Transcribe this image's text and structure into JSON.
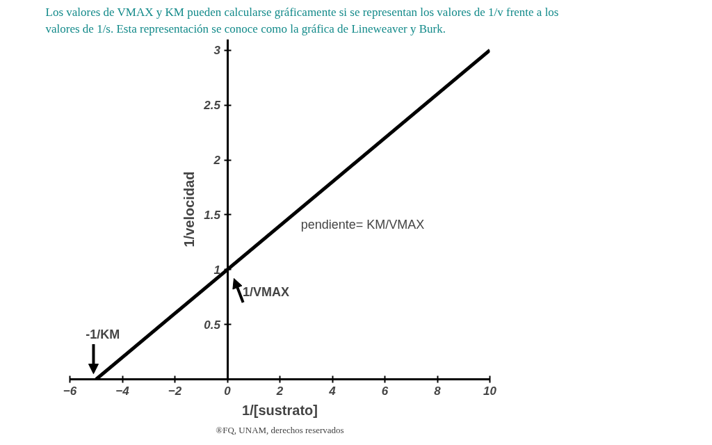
{
  "chart_data": {
    "type": "line",
    "title": "Los valores de VMAX y KM pueden calcularse gráficamente si se representan los valores de 1/v frente a los valores de 1/s. Esta representación se conoce como la gráfica de Lineweaver y Burk.",
    "xlabel": "1/[sustrato]",
    "ylabel": "1/velocidad",
    "series": [
      {
        "color": "#000000",
        "x": [
          -5,
          10
        ],
        "values": [
          0,
          3
        ]
      }
    ],
    "xlim": [
      -6,
      10
    ],
    "ylim": [
      0,
      3.1
    ],
    "xticks": [
      -6,
      -4,
      -2,
      0,
      2,
      4,
      6,
      8,
      10
    ],
    "yticks": [
      0.5,
      1,
      1.5,
      2,
      2.5,
      3
    ],
    "grid": false,
    "marker": "none",
    "line_style": "solid",
    "annotations": [
      "pendiente= KM/VMAX",
      {
        "text": "1/VMAX",
        "x": 0,
        "y": 1
      },
      {
        "text": "-1/KM",
        "x": -5,
        "y": 0
      },
      "®FQ, UNAM, derechos reservados"
    ]
  }
}
